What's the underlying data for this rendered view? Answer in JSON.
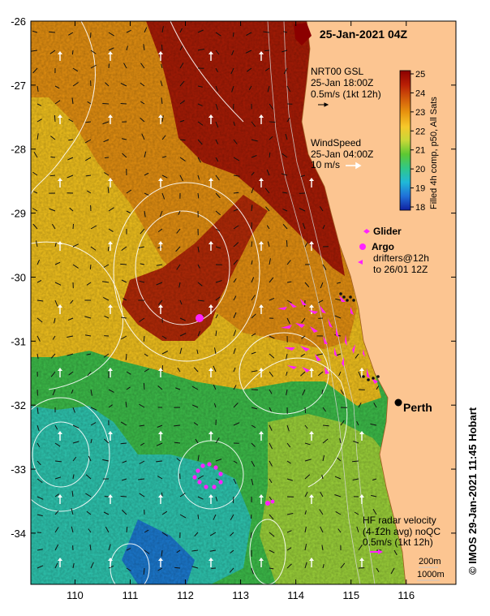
{
  "map": {
    "title": "25-Jan-2021 04Z",
    "lon_ticks": [
      "110",
      "111",
      "112",
      "113",
      "114",
      "115",
      "116"
    ],
    "lat_ticks": [
      "-26",
      "-27",
      "-28",
      "-29",
      "-30",
      "-31",
      "-32",
      "-33",
      "-34"
    ],
    "lon_range": [
      109.2,
      116.9
    ],
    "lat_range": [
      -26.0,
      -34.8
    ],
    "land_color": "#fcc591",
    "city": {
      "name": "Perth",
      "lon": 115.86,
      "lat": -31.95
    }
  },
  "legend": {
    "gsl_title": "NRT00 GSL",
    "gsl_time": "25-Jan 18:00Z",
    "gsl_scale": "0.5m/s (1kt 12h)",
    "wind_title": "WindSpeed",
    "wind_time": "25-Jan 04:00Z",
    "wind_scale": "10 m/s",
    "glider_label": "Glider",
    "argo_label": "Argo",
    "drifters_line1": "drifters@12h",
    "drifters_line2": "to 26/01 12Z",
    "hf_line1": "HF radar velocity",
    "hf_line2": "(4-12h avg) noQC",
    "hf_line3": "0.5m/s (1kt 12h)",
    "depth1": "200m",
    "depth2": "1000m",
    "marker_color": "#ff22ff"
  },
  "colorbar": {
    "label": "Filled 4h comp, p50, All Sats",
    "ticks": [
      "25",
      "24",
      "23",
      "22",
      "21",
      "20",
      "19",
      "18"
    ],
    "colors": [
      "#8b0000",
      "#b81e05",
      "#d25a0a",
      "#e8940f",
      "#f6c82a",
      "#c8d838",
      "#5cc832",
      "#30c888",
      "#20b8d8",
      "#2070d8",
      "#1020a0"
    ]
  },
  "credit": "© IMOS 29-Jan-2021 11:45 Hobart"
}
